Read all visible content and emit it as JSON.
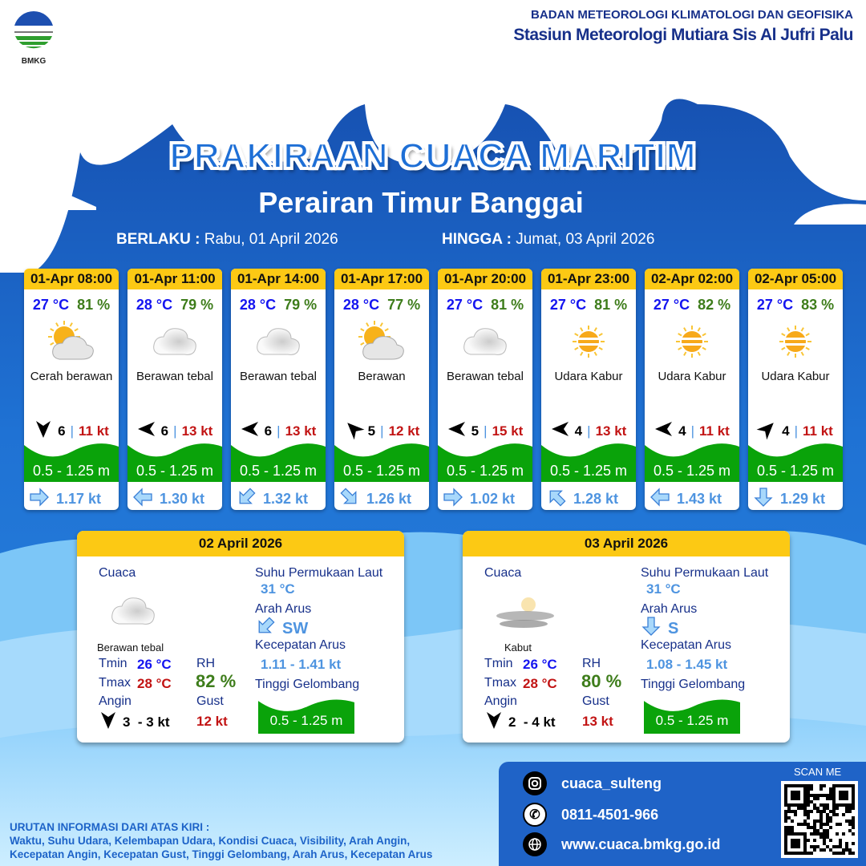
{
  "header": {
    "agency": "BADAN METEOROLOGI KLIMATOLOGI DAN GEOFISIKA",
    "station": "Stasiun Meteorologi Mutiara Sis Al Jufri Palu",
    "logo_text": "BMKG"
  },
  "title": "PRAKIRAAN CUACA MARITIM",
  "area": "Perairan Timur Banggai",
  "validity": {
    "from_label": "BERLAKU :",
    "from": "Rabu, 01 April 2026",
    "to_label": "HINGGA :",
    "to": "Jumat, 03 April 2026"
  },
  "colors": {
    "header_yellow": "#fcc914",
    "wave_green": "#0aa30a",
    "temp_blue": "#1515f0",
    "rh_green": "#3e7d1b",
    "gust_red": "#c21414",
    "current_blue": "#4e94e0"
  },
  "forecasts": [
    {
      "time": "01-Apr 08:00",
      "temp": "27 °C",
      "rh": "81 %",
      "icon": "sun-cloud-icon",
      "condition": "Cerah berawan",
      "wind_dir_deg": 180,
      "wind_speed": "6",
      "gust": "11 kt",
      "wave": "0.5 - 1.25 m",
      "current_dir_deg": 90,
      "current_speed": "1.17 kt"
    },
    {
      "time": "01-Apr 11:00",
      "temp": "28 °C",
      "rh": "79 %",
      "icon": "cloud-icon",
      "condition": "Berawan tebal",
      "wind_dir_deg": 270,
      "wind_speed": "6",
      "gust": "13 kt",
      "wave": "0.5 - 1.25 m",
      "current_dir_deg": 270,
      "current_speed": "1.30 kt"
    },
    {
      "time": "01-Apr 14:00",
      "temp": "28 °C",
      "rh": "79 %",
      "icon": "cloud-icon",
      "condition": "Berawan tebal",
      "wind_dir_deg": 270,
      "wind_speed": "6",
      "gust": "13 kt",
      "wave": "0.5 - 1.25 m",
      "current_dir_deg": 225,
      "current_speed": "1.32 kt"
    },
    {
      "time": "01-Apr 17:00",
      "temp": "28 °C",
      "rh": "77 %",
      "icon": "sun-cloud-icon",
      "condition": "Berawan",
      "wind_dir_deg": 315,
      "wind_speed": "5",
      "gust": "12 kt",
      "wave": "0.5 - 1.25 m",
      "current_dir_deg": 135,
      "current_speed": "1.26 kt"
    },
    {
      "time": "01-Apr 20:00",
      "temp": "27 °C",
      "rh": "81 %",
      "icon": "cloud-icon",
      "condition": "Berawan tebal",
      "wind_dir_deg": 270,
      "wind_speed": "5",
      "gust": "15 kt",
      "wave": "0.5 - 1.25 m",
      "current_dir_deg": 90,
      "current_speed": "1.02 kt"
    },
    {
      "time": "01-Apr 23:00",
      "temp": "27 °C",
      "rh": "81 %",
      "icon": "haze-icon",
      "condition": "Udara Kabur",
      "wind_dir_deg": 270,
      "wind_speed": "4",
      "gust": "13 kt",
      "wave": "0.5 - 1.25 m",
      "current_dir_deg": 315,
      "current_speed": "1.28 kt"
    },
    {
      "time": "02-Apr 02:00",
      "temp": "27 °C",
      "rh": "82 %",
      "icon": "haze-icon",
      "condition": "Udara Kabur",
      "wind_dir_deg": 270,
      "wind_speed": "4",
      "gust": "11 kt",
      "wave": "0.5 - 1.25 m",
      "current_dir_deg": 270,
      "current_speed": "1.43 kt"
    },
    {
      "time": "02-Apr 05:00",
      "temp": "27 °C",
      "rh": "83 %",
      "icon": "haze-icon",
      "condition": "Udara Kabur",
      "wind_dir_deg": 45,
      "wind_speed": "4",
      "gust": "11 kt",
      "wave": "0.5 - 1.25 m",
      "current_dir_deg": 180,
      "current_speed": "1.29 kt"
    }
  ],
  "daily_labels": {
    "weather": "Cuaca",
    "tmin": "Tmin",
    "tmax": "Tmax",
    "wind": "Angin",
    "rh": "RH",
    "gust": "Gust",
    "sst": "Suhu Permukaan Laut",
    "current_dir": "Arah Arus",
    "current_speed": "Kecepatan Arus",
    "wave": "Tinggi Gelombang"
  },
  "daily": [
    {
      "date": "02 April 2026",
      "icon": "cloud-icon",
      "condition": "Berawan tebal",
      "tmin": "26 °C",
      "tmax": "28 °C",
      "rh": "82 %",
      "wind_dir_deg": 180,
      "wind": "3  - 3 kt",
      "gust": "12 kt",
      "sst": "31 °C",
      "current_dir": "SW",
      "current_dir_deg": 225,
      "current_speed": "1.11 - 1.41 kt",
      "wave": "0.5 - 1.25 m"
    },
    {
      "date": "03 April 2026",
      "icon": "fog-icon",
      "condition": "Kabut",
      "tmin": "26 °C",
      "tmax": "28 °C",
      "rh": "80 %",
      "wind_dir_deg": 180,
      "wind": "2  - 4 kt",
      "gust": "13 kt",
      "sst": "31 °C",
      "current_dir": "S",
      "current_dir_deg": 180,
      "current_speed": "1.08 - 1.45 kt",
      "wave": "0.5 - 1.25 m"
    }
  ],
  "info": {
    "heading": "URUTAN INFORMASI DARI ATAS KIRI :",
    "line1": "Waktu, Suhu Udara, Kelembapan Udara, Kondisi Cuaca, Visibility, Arah Angin,",
    "line2": "Kecepatan Angin, Kecepatan Gust, Tinggi Gelombang, Arah Arus, Kecepatan Arus"
  },
  "contact": {
    "instagram": "cuaca_sulteng",
    "phone": "0811-4501-966",
    "website": "www.cuaca.bmkg.go.id",
    "scan_label": "SCAN ME"
  }
}
